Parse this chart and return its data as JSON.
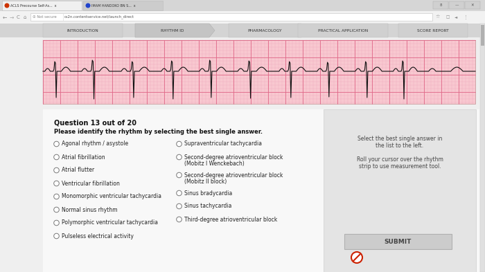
{
  "bg_color": "#e8e8e8",
  "tab_bar_bg": "#d6d6d6",
  "tab1_bg": "#f0f0f0",
  "tab2_bg": "#c8c8c8",
  "addr_bar_bg": "#f5f5f5",
  "addr_bar_text": "Not secure   cs2n.contentservice.net/launch_direct",
  "nav_bg": "#d0d0d0",
  "nav_items": [
    "INTRODUCTION",
    "RHYTHM ID",
    "PHARMACOLOGY",
    "PRACTICAL APPLICATION",
    "SCORE REPORT"
  ],
  "nav_active_index": 1,
  "nav_active_bg": "#c0c0c0",
  "nav_inactive_bg": "#d8d8d8",
  "page_bg": "#efefef",
  "ecg_bg": "#f8c8d0",
  "ecg_grid_major": "#e06888",
  "ecg_grid_minor": "#eeaabb",
  "ecg_line_color": "#111111",
  "content_bg": "#f2f2f2",
  "right_panel_bg": "#e0e0e0",
  "question_title": "Question 13 out of 20",
  "question_text": "Please identify the rhythm by selecting the best single answer.",
  "left_options": [
    "Agonal rhythm / asystole",
    "Atrial fibrillation",
    "Atrial flutter",
    "Ventricular fibrillation",
    "Monomorphic ventricular tachycardia",
    "Normal sinus rhythm",
    "Polymorphic ventricular tachycardia",
    "Pulseless electrical activity"
  ],
  "right_options_line1": [
    "Supraventricular tachycardia",
    "Second-degree atrioventricular block",
    "Second-degree atrioventricular block",
    "Sinus bradycardia",
    "Sinus tachycardia",
    "Third-degree atrioventricular block"
  ],
  "right_options_line2": [
    "",
    "(Mobitz I Wenckebach)",
    "(Mobitz II block)",
    "",
    "",
    ""
  ],
  "hint_line1": "Select the best single answer in",
  "hint_line2": "the list to the left.",
  "hint_line3": "",
  "hint_line4": "Roll your cursor over the rhythm",
  "hint_line5": "strip to use measurement tool.",
  "submit_label": "SUBMIT"
}
